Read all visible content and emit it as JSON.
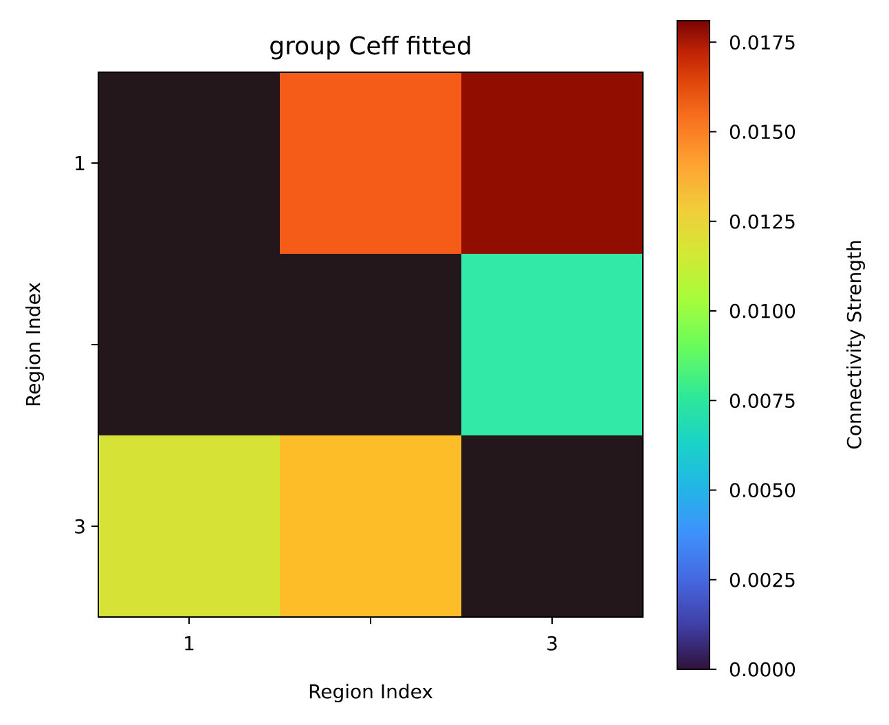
{
  "chart_data": {
    "type": "heatmap",
    "title": "group Ceff fitted",
    "xlabel": "Region Index",
    "ylabel": "Region Index",
    "x_categories": [
      "1",
      "2",
      "3"
    ],
    "y_categories": [
      "1",
      "2",
      "3"
    ],
    "x_tick_labels": [
      "1",
      "",
      "3"
    ],
    "y_tick_labels": [
      "1",
      "",
      "3"
    ],
    "values": [
      [
        0.0,
        0.0145,
        0.0181
      ],
      [
        0.0,
        0.0,
        0.0062
      ],
      [
        0.0106,
        0.0119,
        0.0
      ]
    ],
    "colorbar": {
      "label": "Connectivity Strength",
      "colormap": "turbo",
      "range": [
        0.0,
        0.0181
      ],
      "ticks": [
        0.0,
        0.0025,
        0.005,
        0.0075,
        0.01,
        0.0125,
        0.015,
        0.0175
      ],
      "tick_labels": [
        "0.0000",
        "0.0025",
        "0.0050",
        "0.0075",
        "0.0100",
        "0.0125",
        "0.0150",
        "0.0175"
      ]
    },
    "grid": false
  }
}
